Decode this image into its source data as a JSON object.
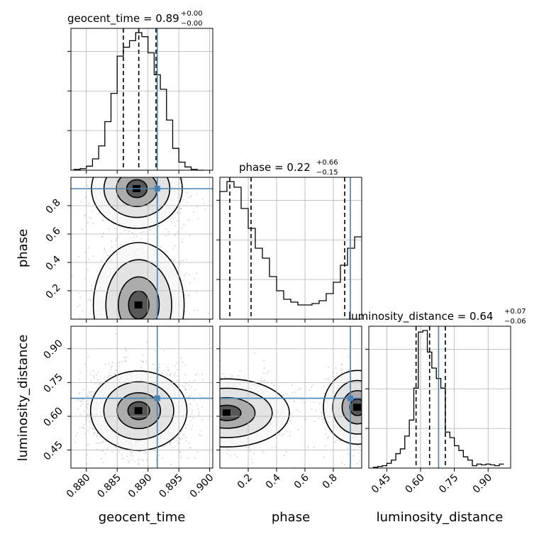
{
  "chart_data": {
    "type": "corner",
    "parameters": [
      "geocent_time",
      "phase",
      "luminosity_distance"
    ],
    "truths": {
      "geocent_time": 0.8915,
      "phase": 0.92,
      "luminosity_distance": 0.68
    },
    "titles": {
      "geocent_time": {
        "label": "geocent_time = 0.89",
        "sup": "+0.00",
        "sub": "−0.00"
      },
      "phase": {
        "label": "phase = 0.22",
        "sup": "+0.66",
        "sub": "−0.15"
      },
      "luminosity_distance": {
        "label": "luminosity_distance = 0.64",
        "sup": "+0.07",
        "sub": "−0.06"
      }
    },
    "axes": {
      "geocent_time": {
        "range": [
          0.8775,
          0.9005
        ],
        "ticks": [
          0.88,
          0.885,
          0.89,
          0.895,
          0.9
        ],
        "tick_labels": [
          "0.880",
          "0.885",
          "0.890",
          "0.895",
          "0.900"
        ]
      },
      "phase": {
        "range": [
          0.0,
          1.0
        ],
        "ticks": [
          0.2,
          0.4,
          0.6,
          0.8
        ],
        "tick_labels": [
          "0.2",
          "0.4",
          "0.6",
          "0.8"
        ]
      },
      "luminosity_distance": {
        "range": [
          0.37,
          1.0
        ],
        "ticks": [
          0.45,
          0.6,
          0.75,
          0.9
        ],
        "tick_labels": [
          "0.45",
          "0.60",
          "0.75",
          "0.90"
        ]
      }
    },
    "histograms": {
      "geocent_time": {
        "edges": [
          0.878,
          0.879,
          0.88,
          0.881,
          0.882,
          0.883,
          0.884,
          0.885,
          0.886,
          0.887,
          0.888,
          0.889,
          0.89,
          0.891,
          0.892,
          0.893,
          0.894,
          0.895,
          0.896,
          0.897,
          0.898,
          0.899
        ],
        "counts": [
          1,
          2,
          5,
          14,
          30,
          60,
          95,
          141,
          152,
          160,
          170,
          165,
          145,
          118,
          100,
          62,
          27,
          10,
          4,
          1,
          0
        ],
        "quantiles": [
          0.886,
          0.8885,
          0.8913
        ]
      },
      "phase": {
        "edges": [
          0.0,
          0.05,
          0.1,
          0.15,
          0.2,
          0.25,
          0.3,
          0.35,
          0.4,
          0.45,
          0.5,
          0.55,
          0.6,
          0.65,
          0.7,
          0.75,
          0.8,
          0.85,
          0.9,
          0.95,
          1.0
        ],
        "counts": [
          90,
          97,
          93,
          78,
          64,
          50,
          43,
          30,
          20,
          14,
          12,
          10,
          10,
          11,
          13,
          18,
          26,
          38,
          50,
          58
        ],
        "quantiles": [
          0.07,
          0.22,
          0.88
        ]
      },
      "luminosity_distance": {
        "edges": [
          0.39,
          0.41,
          0.43,
          0.45,
          0.47,
          0.49,
          0.51,
          0.53,
          0.55,
          0.57,
          0.59,
          0.61,
          0.63,
          0.65,
          0.67,
          0.69,
          0.71,
          0.73,
          0.75,
          0.77,
          0.79,
          0.81,
          0.83,
          0.85,
          0.87,
          0.89,
          0.91,
          0.93,
          0.95,
          0.97
        ],
        "counts": [
          1,
          2,
          3,
          6,
          10,
          18,
          24,
          40,
          60,
          100,
          170,
          172,
          145,
          125,
          112,
          100,
          45,
          38,
          28,
          22,
          14,
          10,
          3,
          5,
          4,
          5,
          4,
          3,
          5
        ],
        "quantiles": [
          0.58,
          0.64,
          0.71
        ]
      }
    },
    "contours_2d": [
      {
        "x": "geocent_time",
        "y": "phase",
        "mode": "bimodal",
        "centers": [
          [
            0.8885,
            0.1
          ],
          [
            0.8882,
            0.92
          ]
        ]
      },
      {
        "x": "geocent_time",
        "y": "luminosity_distance",
        "mode": "unimodal",
        "centers": [
          [
            0.8885,
            0.625
          ]
        ]
      },
      {
        "x": "phase",
        "y": "luminosity_distance",
        "mode": "wrapped",
        "centers": [
          [
            0.05,
            0.615
          ],
          [
            0.97,
            0.64
          ]
        ]
      }
    ],
    "colors": {
      "truth": "#4682b4",
      "hist": "#000000",
      "grid": "#b0b0b0",
      "scatter": "#a6a6a6"
    }
  }
}
